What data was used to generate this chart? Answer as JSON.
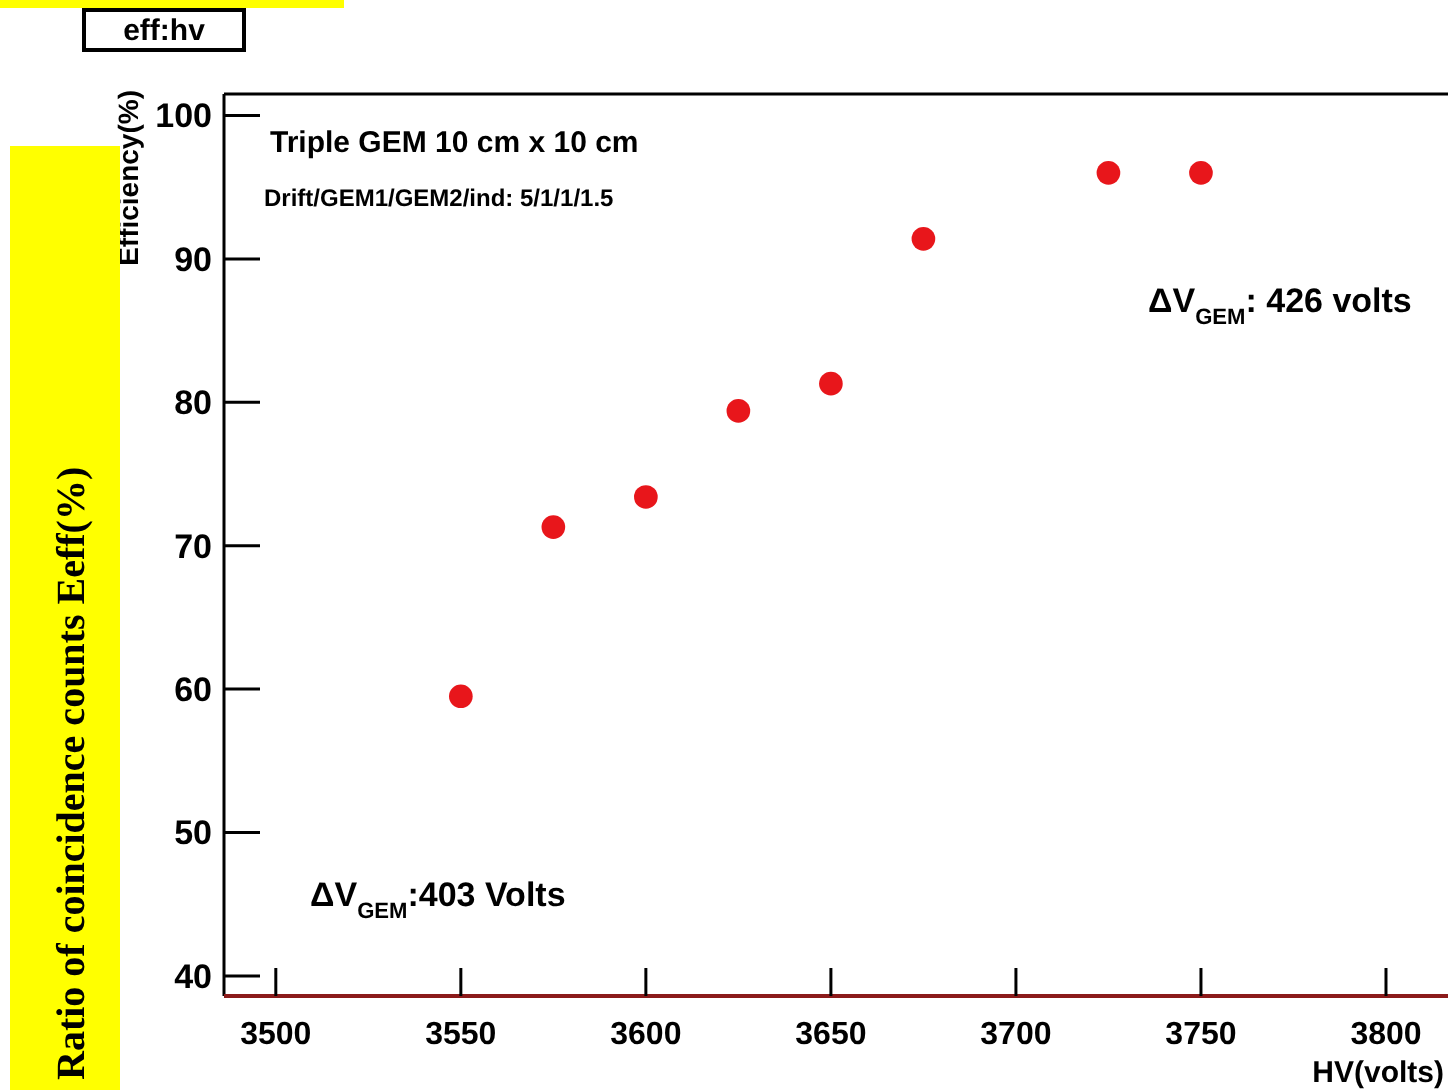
{
  "chart_data": {
    "type": "scatter",
    "title": "eff:hv",
    "xlabel": "HV(volts)",
    "ylabel": "Efficiency(%)",
    "x": [
      3550,
      3575,
      3600,
      3625,
      3650,
      3675,
      3725,
      3750
    ],
    "series": [
      {
        "color": "#e8161b",
        "values": [
          59.5,
          71.3,
          73.4,
          79.4,
          81.3,
          91.4,
          96.0,
          96.0
        ]
      }
    ],
    "xlim": [
      3486,
      3820
    ],
    "xticks": [
      3500,
      3550,
      3600,
      3650,
      3700,
      3750,
      3800
    ],
    "ylim": [
      38.6,
      101.5
    ],
    "yticks": [
      40,
      50,
      60,
      70,
      80,
      90,
      100
    ],
    "grid": false,
    "marker": "circle",
    "annotations": [
      "Ratio of coincidence counts  Eeff(%)",
      "Triple GEM 10 cm x 10 cm",
      "Drift/GEM1/GEM2/ind: 5/1/1/1.5",
      "ΔV$_{GEM}$: 426 volts",
      "ΔV$_{GEM}$:403 Volts"
    ]
  }
}
